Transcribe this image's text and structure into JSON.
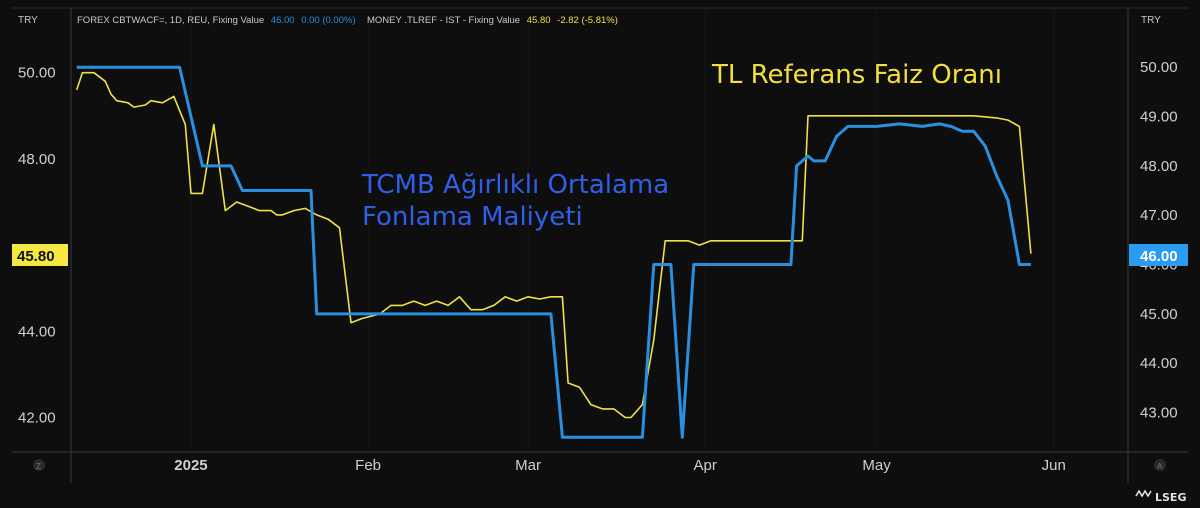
{
  "chart_data": {
    "type": "line",
    "left_axis": {
      "currency": "TRY",
      "ticks": [
        "50.00",
        "48.00",
        "44.00",
        "42.00"
      ],
      "ylim": [
        41.2,
        51.5
      ]
    },
    "right_axis": {
      "currency": "TRY",
      "ticks": [
        "50.00",
        "49.00",
        "48.00",
        "47.00",
        "46.00",
        "45.00",
        "44.00",
        "43.00"
      ],
      "ylim": [
        42.2,
        51.2
      ]
    },
    "x_labels": [
      "2025",
      "Feb",
      "Mar",
      "Apr",
      "May",
      "Jun"
    ],
    "legend": [
      {
        "prefix": "FOREX CBTWACF=, 1D, REU, Fixing Value",
        "value": "46.00",
        "change": "0.00 (0.00%)",
        "color": "#2b8fe0"
      },
      {
        "prefix": "MONEY .TLREF - IST - Fixing Value",
        "value": "45.80",
        "change": "-2.82 (-5.81%)",
        "color": "#f0e04a"
      }
    ],
    "annotations": [
      {
        "text": "TL Referans Faiz Oranı",
        "color": "#f2df3c"
      },
      {
        "text": "TCMB Ağırlıklı Ortalama",
        "color": "#2f5fe6"
      },
      {
        "text": "Fonlama Maliyeti",
        "color": "#2f5fe6"
      }
    ],
    "badges": {
      "left": "45.80",
      "right": "46.00"
    },
    "corner_marks": [
      "Z",
      "A"
    ],
    "brand": "LSEG",
    "series": [
      {
        "name": "FOREX CBTWACF=",
        "axis": "right",
        "color": "#2b8fe0",
        "points": [
          [
            "2024-12-12",
            50.0
          ],
          [
            "2024-12-30",
            50.0
          ],
          [
            "2025-01-03",
            48.0
          ],
          [
            "2025-01-08",
            48.0
          ],
          [
            "2025-01-10",
            47.5
          ],
          [
            "2025-01-22",
            47.5
          ],
          [
            "2025-01-23",
            45.0
          ],
          [
            "2025-02-10",
            45.0
          ],
          [
            "2025-03-05",
            45.0
          ],
          [
            "2025-03-07",
            42.5
          ],
          [
            "2025-03-21",
            42.5
          ],
          [
            "2025-03-23",
            46.0
          ],
          [
            "2025-03-26",
            46.0
          ],
          [
            "2025-03-28",
            42.5
          ],
          [
            "2025-03-30",
            46.0
          ],
          [
            "2025-04-16",
            46.0
          ],
          [
            "2025-04-17",
            48.0
          ],
          [
            "2025-04-19",
            48.2
          ],
          [
            "2025-04-20",
            48.1
          ],
          [
            "2025-04-22",
            48.1
          ],
          [
            "2025-04-24",
            48.6
          ],
          [
            "2025-04-26",
            48.8
          ],
          [
            "2025-05-01",
            48.8
          ],
          [
            "2025-05-05",
            48.85
          ],
          [
            "2025-05-09",
            48.8
          ],
          [
            "2025-05-12",
            48.85
          ],
          [
            "2025-05-14",
            48.8
          ],
          [
            "2025-05-16",
            48.7
          ],
          [
            "2025-05-18",
            48.7
          ],
          [
            "2025-05-20",
            48.4
          ],
          [
            "2025-05-22",
            47.8
          ],
          [
            "2025-05-24",
            47.3
          ],
          [
            "2025-05-26",
            46.0
          ],
          [
            "2025-05-28",
            46.0
          ]
        ]
      },
      {
        "name": "MONEY .TLREF",
        "axis": "left",
        "color": "#f0e04a",
        "points": [
          [
            "2024-12-12",
            49.6
          ],
          [
            "2024-12-13",
            50.0
          ],
          [
            "2024-12-15",
            50.0
          ],
          [
            "2024-12-17",
            49.8
          ],
          [
            "2024-12-18",
            49.5
          ],
          [
            "2024-12-19",
            49.35
          ],
          [
            "2024-12-21",
            49.3
          ],
          [
            "2024-12-22",
            49.2
          ],
          [
            "2024-12-24",
            49.25
          ],
          [
            "2024-12-25",
            49.35
          ],
          [
            "2024-12-27",
            49.3
          ],
          [
            "2024-12-29",
            49.45
          ],
          [
            "2024-12-31",
            48.8
          ],
          [
            "2025-01-01",
            47.2
          ],
          [
            "2025-01-02",
            47.2
          ],
          [
            "2025-01-03",
            47.2
          ],
          [
            "2025-01-05",
            48.8
          ],
          [
            "2025-01-07",
            46.8
          ],
          [
            "2025-01-09",
            47.0
          ],
          [
            "2025-01-11",
            46.9
          ],
          [
            "2025-01-13",
            46.8
          ],
          [
            "2025-01-15",
            46.8
          ],
          [
            "2025-01-16",
            46.7
          ],
          [
            "2025-01-17",
            46.7
          ],
          [
            "2025-01-19",
            46.8
          ],
          [
            "2025-01-21",
            46.85
          ],
          [
            "2025-01-23",
            46.7
          ],
          [
            "2025-01-25",
            46.6
          ],
          [
            "2025-01-27",
            46.4
          ],
          [
            "2025-01-29",
            44.2
          ],
          [
            "2025-01-31",
            44.3
          ],
          [
            "2025-02-03",
            44.4
          ],
          [
            "2025-02-05",
            44.6
          ],
          [
            "2025-02-07",
            44.6
          ],
          [
            "2025-02-09",
            44.7
          ],
          [
            "2025-02-11",
            44.6
          ],
          [
            "2025-02-13",
            44.7
          ],
          [
            "2025-02-15",
            44.6
          ],
          [
            "2025-02-17",
            44.8
          ],
          [
            "2025-02-19",
            44.5
          ],
          [
            "2025-02-21",
            44.5
          ],
          [
            "2025-02-23",
            44.6
          ],
          [
            "2025-02-25",
            44.8
          ],
          [
            "2025-02-27",
            44.7
          ],
          [
            "2025-03-01",
            44.8
          ],
          [
            "2025-03-03",
            44.75
          ],
          [
            "2025-03-05",
            44.8
          ],
          [
            "2025-03-07",
            44.8
          ],
          [
            "2025-03-08",
            42.8
          ],
          [
            "2025-03-10",
            42.7
          ],
          [
            "2025-03-12",
            42.3
          ],
          [
            "2025-03-14",
            42.2
          ],
          [
            "2025-03-16",
            42.2
          ],
          [
            "2025-03-18",
            42.0
          ],
          [
            "2025-03-19",
            42.0
          ],
          [
            "2025-03-21",
            42.3
          ],
          [
            "2025-03-23",
            43.8
          ],
          [
            "2025-03-25",
            46.1
          ],
          [
            "2025-03-27",
            46.1
          ],
          [
            "2025-03-29",
            46.1
          ],
          [
            "2025-03-31",
            46.0
          ],
          [
            "2025-04-02",
            46.1
          ],
          [
            "2025-04-16",
            46.1
          ],
          [
            "2025-04-18",
            46.1
          ],
          [
            "2025-04-19",
            49.0
          ],
          [
            "2025-05-16",
            49.0
          ],
          [
            "2025-05-18",
            49.0
          ],
          [
            "2025-05-22",
            48.95
          ],
          [
            "2025-05-24",
            48.9
          ],
          [
            "2025-05-26",
            48.75
          ],
          [
            "2025-05-28",
            45.8
          ]
        ]
      }
    ]
  }
}
